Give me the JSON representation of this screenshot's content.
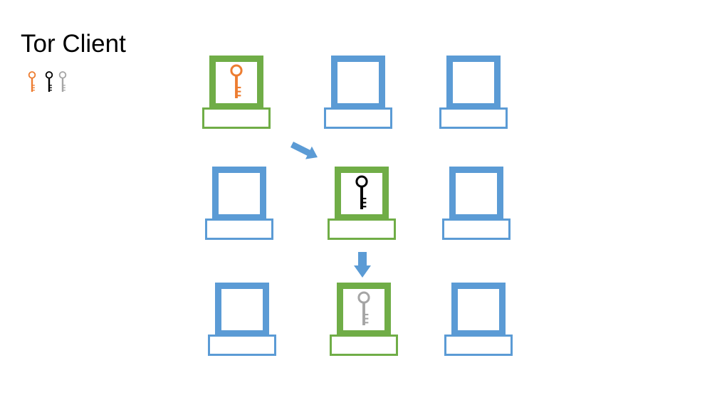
{
  "title": "Tor Client",
  "colors": {
    "relay": "#5B9BD5",
    "active_relay": "#70AD47",
    "key_guard": "#ED7D31",
    "key_middle": "#000000",
    "key_exit": "#A5A5A5"
  },
  "legend_keys": [
    "key_guard",
    "key_middle",
    "key_exit"
  ],
  "grid": {
    "rows": [
      [
        {
          "name": "relay-computer-r1c1",
          "active": true,
          "key": "key_guard"
        },
        {
          "name": "relay-computer-r1c2",
          "active": false
        },
        {
          "name": "relay-computer-r1c3",
          "active": false
        }
      ],
      [
        {
          "name": "relay-computer-r2c1",
          "active": false
        },
        {
          "name": "relay-computer-r2c2",
          "active": true,
          "key": "key_middle"
        },
        {
          "name": "relay-computer-r2c3",
          "active": false
        }
      ],
      [
        {
          "name": "relay-computer-r3c1",
          "active": false
        },
        {
          "name": "relay-computer-r3c2",
          "active": true,
          "key": "key_exit"
        },
        {
          "name": "relay-computer-r3c3",
          "active": false
        }
      ]
    ]
  },
  "path": [
    {
      "from": "relay-computer-r1c1",
      "to": "relay-computer-r2c2",
      "direction": "diagonal-down-right"
    },
    {
      "from": "relay-computer-r2c2",
      "to": "relay-computer-r3c2",
      "direction": "down"
    }
  ]
}
